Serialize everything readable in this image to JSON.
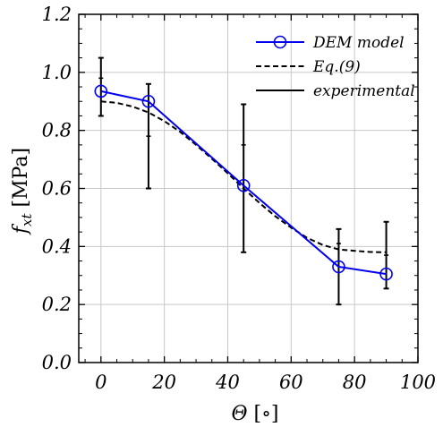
{
  "chart_data": {
    "type": "line",
    "xlabel": "Θ [∘]",
    "ylabel": "f_xt [MPa]",
    "ylabel_main": "f",
    "ylabel_sub": "xt",
    "ylabel_unit": " [MPa]",
    "xlabel_main": "Θ",
    "xlabel_unit": " [∘]",
    "xlim": [
      -7,
      100
    ],
    "ylim": [
      0.0,
      1.2
    ],
    "xticks": [
      0,
      20,
      40,
      60,
      80,
      100
    ],
    "yticks": [
      0.0,
      0.2,
      0.4,
      0.6,
      0.8,
      1.0,
      1.2
    ],
    "xtick_labels": [
      "0",
      "20",
      "40",
      "60",
      "80",
      "100"
    ],
    "ytick_labels": [
      "0.0",
      "0.2",
      "0.4",
      "0.6",
      "0.8",
      "1.0",
      "1.2"
    ],
    "grid": true,
    "legend_position": "top-right",
    "series": [
      {
        "name": "DEM model",
        "style": "line-circle",
        "color": "#0000ee",
        "x": [
          0,
          15,
          45,
          75,
          90
        ],
        "y": [
          0.935,
          0.9,
          0.61,
          0.33,
          0.305
        ]
      },
      {
        "name": "Eq.(9)",
        "style": "dashed",
        "color": "#000000",
        "x": [
          0,
          5,
          10,
          15,
          20,
          25,
          30,
          35,
          40,
          45,
          50,
          55,
          60,
          65,
          70,
          75,
          80,
          85,
          90
        ],
        "y": [
          0.9,
          0.895,
          0.882,
          0.862,
          0.832,
          0.795,
          0.75,
          0.702,
          0.652,
          0.6,
          0.55,
          0.504,
          0.465,
          0.43,
          0.405,
          0.39,
          0.385,
          0.381,
          0.38
        ]
      },
      {
        "name": "experimental",
        "style": "errorbar",
        "color": "#000000",
        "x": [
          0,
          15,
          45,
          75,
          90
        ],
        "ymin": [
          0.85,
          0.6,
          0.38,
          0.2,
          0.255
        ],
        "ymax": [
          1.05,
          0.96,
          0.89,
          0.46,
          0.485
        ],
        "extra_ticks": [
          [
            0.98
          ],
          [
            0.78
          ],
          [
            0.75
          ],
          [
            0.41
          ],
          [
            0.37
          ]
        ]
      }
    ]
  },
  "colors": {
    "dem": "#0000ee",
    "grid": "#c8c8c8",
    "axis": "#000000"
  }
}
